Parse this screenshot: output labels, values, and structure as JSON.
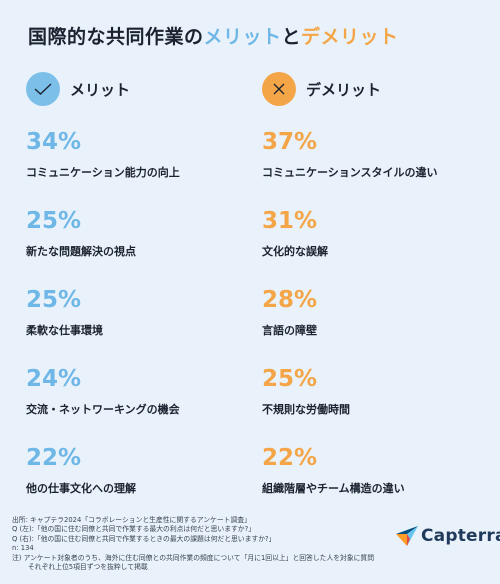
{
  "title": {
    "part1": "国際的な共同作業の",
    "merit": "メリット",
    "and": "と",
    "demerit": "デメリット"
  },
  "colors": {
    "merit": "#6fb7e6",
    "demerit": "#f3a548",
    "text": "#1b2330",
    "background": "#e9f2fa"
  },
  "icons": {
    "merit": "check-icon",
    "demerit": "x-icon"
  },
  "chart_data": {
    "type": "table",
    "series": [
      {
        "name": "メリット",
        "items": [
          {
            "percent": "34%",
            "value": 34,
            "label": "コミュニケーション能力の向上"
          },
          {
            "percent": "25%",
            "value": 25,
            "label": "新たな問題解決の視点"
          },
          {
            "percent": "25%",
            "value": 25,
            "label": "柔軟な仕事環境"
          },
          {
            "percent": "24%",
            "value": 24,
            "label": "交流・ネットワーキングの機会"
          },
          {
            "percent": "22%",
            "value": 22,
            "label": "他の仕事文化への理解"
          }
        ]
      },
      {
        "name": "デメリット",
        "items": [
          {
            "percent": "37%",
            "value": 37,
            "label": "コミュニケーションスタイルの違い"
          },
          {
            "percent": "31%",
            "value": 31,
            "label": "文化的な誤解"
          },
          {
            "percent": "28%",
            "value": 28,
            "label": "言語の障壁"
          },
          {
            "percent": "25%",
            "value": 25,
            "label": "不規則な労働時間"
          },
          {
            "percent": "22%",
            "value": 22,
            "label": "組織階層やチーム構造の違い"
          }
        ]
      }
    ]
  },
  "footer": [
    "出所: キャプテラ2024「コラボレーションと生産性に関するアンケート調査」",
    "Q (左):「他の国に住む同僚と共同で作業する最大の利点は何だと思いますか?」",
    "Q (右):「他の国に住む同僚と共同で作業するときの最大の課題は何だと思いますか?」",
    "n: 134",
    "注) アンケート対象者のうち、海外に住む同僚との共同作業の頻度について「月に1回以上」と回答した人を対象に質問",
    "それぞれ上位5項目ずつを抜粋して掲載"
  ],
  "logo": {
    "text": "Capterra"
  }
}
